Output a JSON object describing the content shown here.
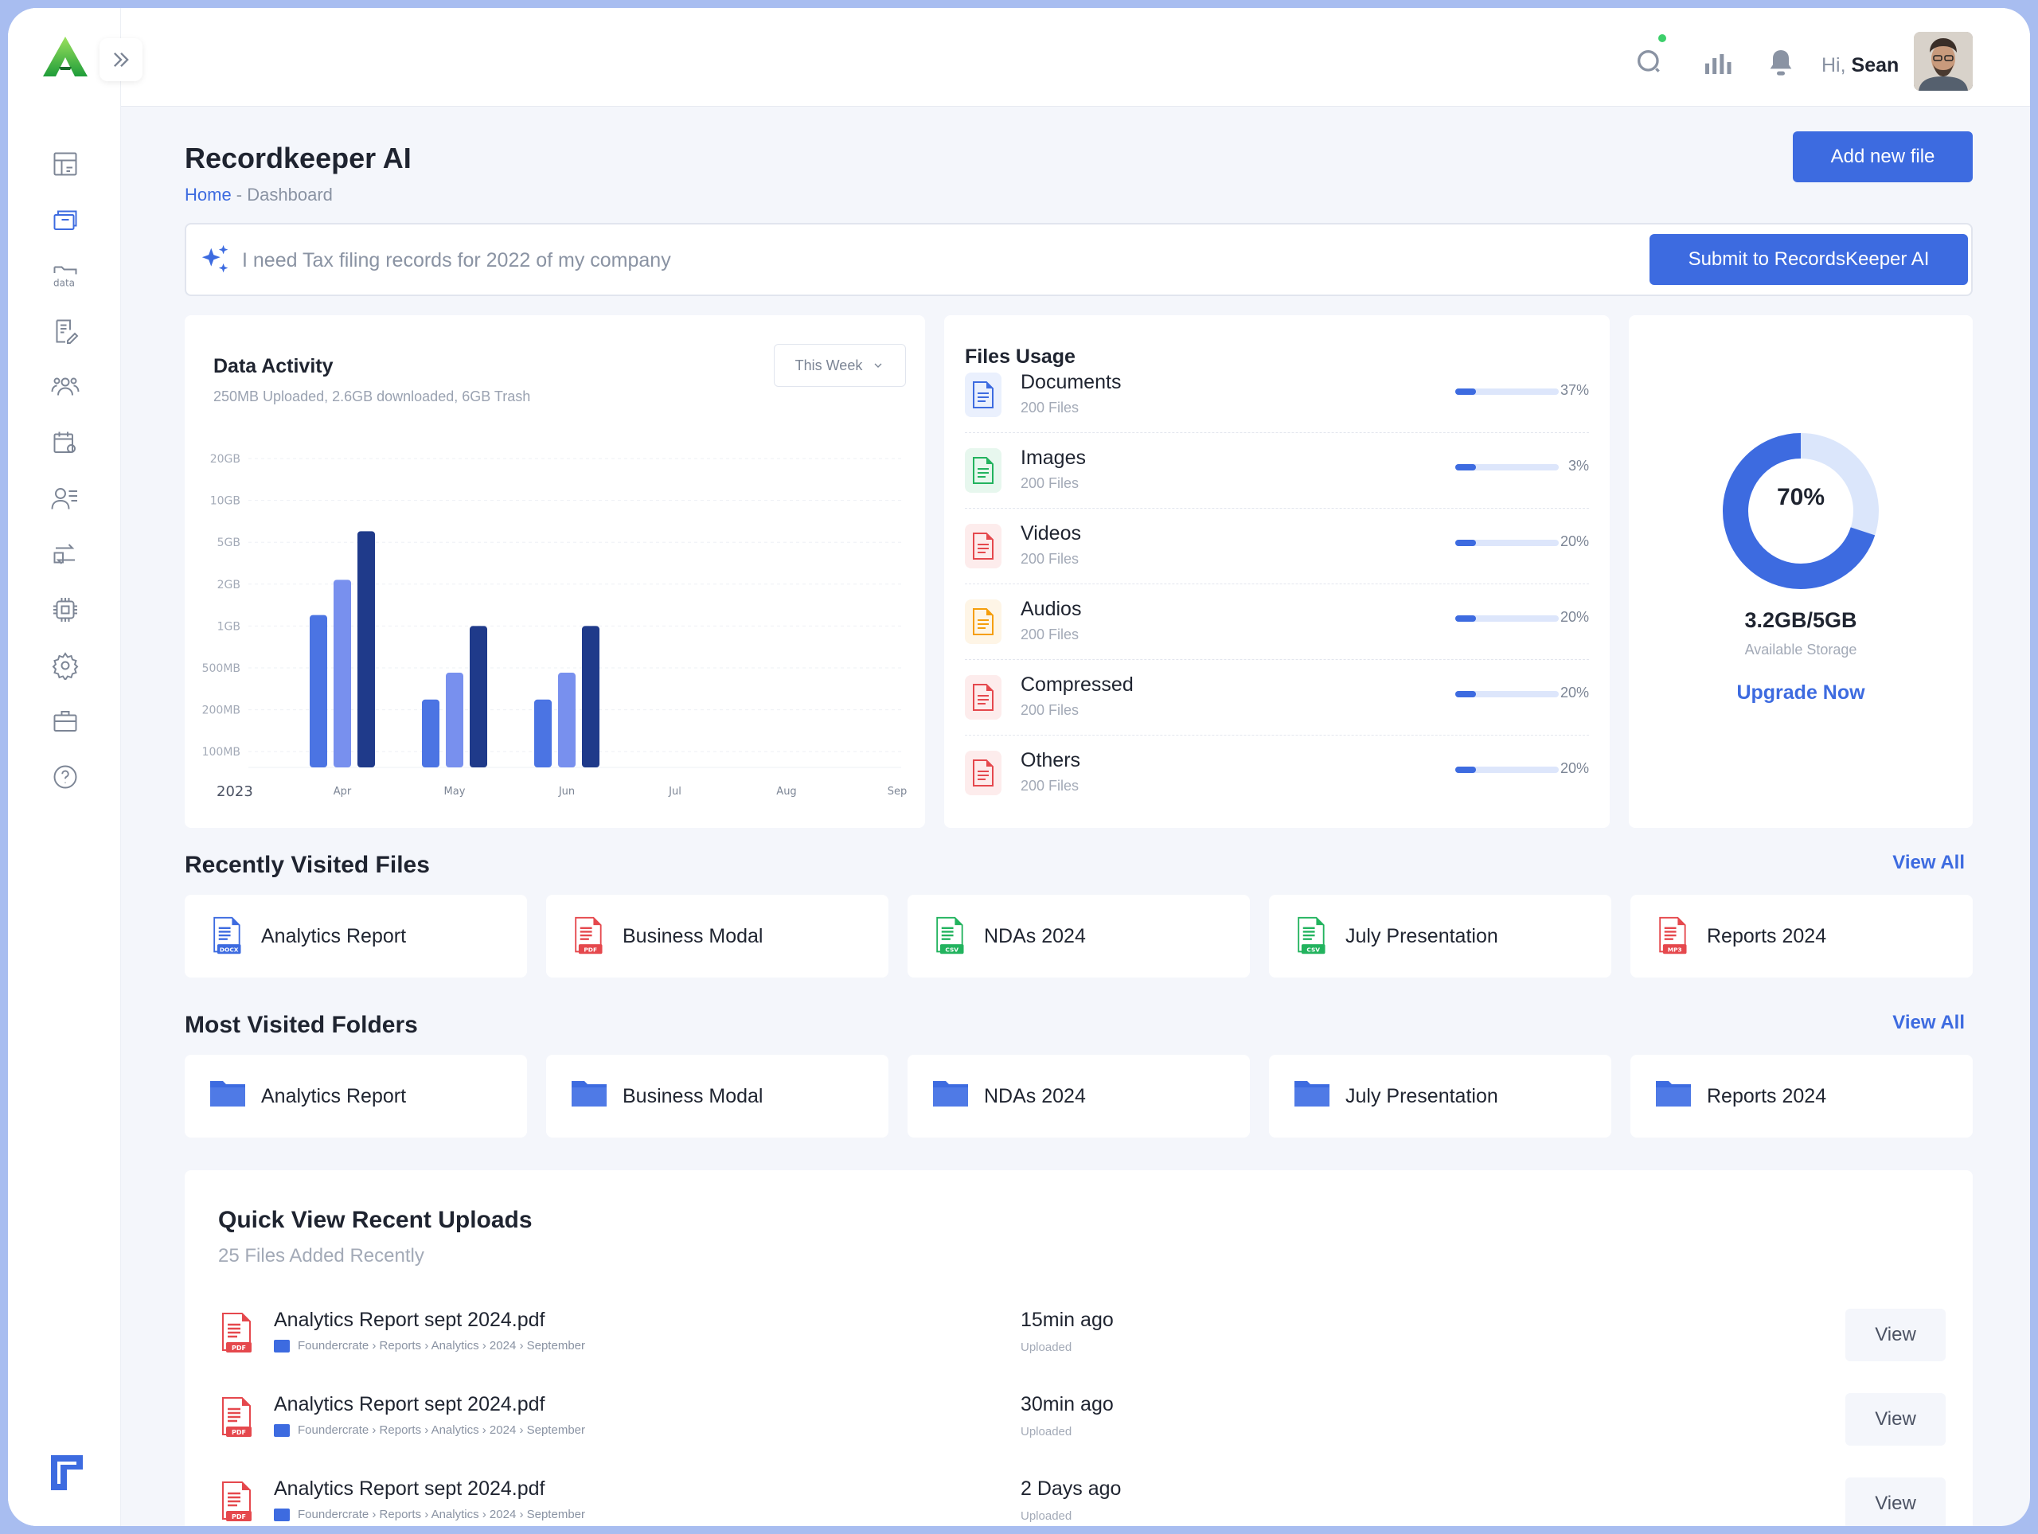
{
  "header": {
    "greeting_prefix": "Hi,",
    "user_name": "Sean",
    "icons": [
      "search-icon",
      "stats-icon",
      "bell-icon"
    ]
  },
  "sidebar": {
    "items": [
      {
        "icon": "dashboard-icon"
      },
      {
        "icon": "records-icon",
        "active": true
      },
      {
        "icon": "data-folder-icon"
      },
      {
        "icon": "document-edit-icon"
      },
      {
        "icon": "users-icon"
      },
      {
        "icon": "calendar-settings-icon"
      },
      {
        "icon": "user-list-icon"
      },
      {
        "icon": "transfer-icon"
      },
      {
        "icon": "chip-icon"
      },
      {
        "icon": "settings-icon"
      },
      {
        "icon": "briefcase-icon"
      },
      {
        "icon": "help-icon"
      }
    ],
    "data_label": "data"
  },
  "page": {
    "title": "Recordkeeper AI",
    "breadcrumb_home": "Home",
    "breadcrumb_sep": " - ",
    "breadcrumb_current": "Dashboard",
    "add_button": "Add new file"
  },
  "ai_search": {
    "placeholder": "I need Tax filing records for 2022 of my company",
    "submit_label": "Submit to RecordsKeeper AI"
  },
  "data_activity": {
    "title": "Data Activity",
    "subtitle": "250MB Uploaded, 2.6GB downloaded, 6GB Trash",
    "range": "This Week"
  },
  "chart_data": {
    "type": "bar",
    "year_label": "2023",
    "categories": [
      "Apr",
      "May",
      "Jun",
      "Jul",
      "Aug",
      "Sep"
    ],
    "y_ticks": [
      "20GB",
      "10GB",
      "5GB",
      "2GB",
      "1GB",
      "500MB",
      "200MB",
      "100MB"
    ],
    "series": [
      {
        "values": [
          1.2,
          0.25,
          0.25,
          null,
          null,
          null
        ],
        "color": "#4b74e3"
      },
      {
        "values": [
          2.2,
          0.45,
          0.45,
          null,
          null,
          null
        ],
        "color": "#7890ee"
      },
      {
        "values": [
          6.0,
          1.0,
          1.0,
          null,
          null,
          null
        ],
        "color": "#1f3a8a"
      }
    ],
    "grid": true
  },
  "files_usage": {
    "title": "Files Usage",
    "items": [
      {
        "name": "Documents",
        "count": "200 Files",
        "percent_label": "37%",
        "fill": 0.2,
        "icon": "document-icon",
        "color": "#3d6be0",
        "bg": "#eaf0fd"
      },
      {
        "name": "Images",
        "count": "200 Files",
        "percent_label": "3%",
        "fill": 0.2,
        "icon": "image-icon",
        "color": "#22b35e",
        "bg": "#e7f7ee"
      },
      {
        "name": "Videos",
        "count": "200 Files",
        "percent_label": "20%",
        "fill": 0.2,
        "icon": "video-icon",
        "color": "#e5484d",
        "bg": "#fdecec"
      },
      {
        "name": "Audios",
        "count": "200 Files",
        "percent_label": "20%",
        "fill": 0.2,
        "icon": "audio-icon",
        "color": "#f59e0b",
        "bg": "#fef5e6"
      },
      {
        "name": "Compressed",
        "count": "200 Files",
        "percent_label": "20%",
        "fill": 0.2,
        "icon": "zip-icon",
        "color": "#e5484d",
        "bg": "#fdecec"
      },
      {
        "name": "Others",
        "count": "200 Files",
        "percent_label": "20%",
        "fill": 0.2,
        "icon": "file-icon",
        "color": "#e5484d",
        "bg": "#fdecec"
      }
    ]
  },
  "storage": {
    "percent": 0.7,
    "percent_label": "70%",
    "amount": "3.2GB/5GB",
    "subtitle": "Available Storage",
    "upgrade": "Upgrade Now"
  },
  "recent_files": {
    "title": "Recently Visited Files",
    "view_all": "View All",
    "items": [
      {
        "name": "Analytics Report",
        "badge": "DOCX",
        "color": "#3d6be0",
        "icon": "docx-file-icon"
      },
      {
        "name": "Business Modal",
        "badge": "PDF",
        "color": "#e5484d",
        "icon": "pdf-file-icon"
      },
      {
        "name": "NDAs 2024",
        "badge": "CSV",
        "color": "#22b35e",
        "icon": "csv-file-icon"
      },
      {
        "name": "July Presentation",
        "badge": "CSV",
        "color": "#22b35e",
        "icon": "csv-file-icon"
      },
      {
        "name": "Reports 2024",
        "badge": "MP3",
        "color": "#e5484d",
        "icon": "mp3-file-icon"
      }
    ]
  },
  "folders": {
    "title": "Most Visited Folders",
    "view_all": "View All",
    "items": [
      {
        "name": "Analytics Report"
      },
      {
        "name": "Business Modal"
      },
      {
        "name": "NDAs 2024"
      },
      {
        "name": "July Presentation"
      },
      {
        "name": "Reports 2024"
      }
    ]
  },
  "uploads": {
    "title": "Quick View Recent Uploads",
    "subtitle": "25 Files Added Recently",
    "view_label": "View",
    "items": [
      {
        "name": "Analytics Report sept 2024.pdf",
        "path": "Foundercrate › Reports › Analytics › 2024 › September",
        "time": "15min ago",
        "status": "Uploaded"
      },
      {
        "name": "Analytics Report sept 2024.pdf",
        "path": "Foundercrate › Reports › Analytics › 2024 › September",
        "time": "30min ago",
        "status": "Uploaded"
      },
      {
        "name": "Analytics Report sept 2024.pdf",
        "path": "Foundercrate › Reports › Analytics › 2024 › September",
        "time": "2 Days ago",
        "status": "Uploaded"
      }
    ]
  }
}
